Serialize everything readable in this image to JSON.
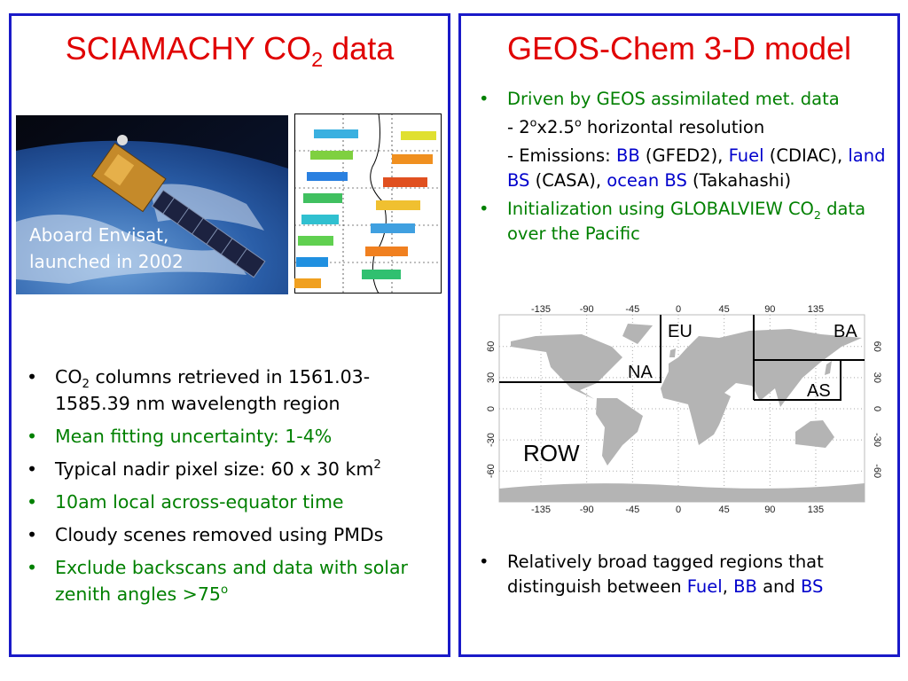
{
  "left": {
    "title": {
      "runs": [
        {
          "text": "SCIAMACHY CO"
        },
        {
          "text": "2",
          "script": "sub"
        },
        {
          "text": " data"
        }
      ]
    },
    "photo_caption": [
      "Aboard Envisat,",
      "launched in 2002"
    ],
    "bullets": [
      {
        "color": "#000000",
        "runs": [
          {
            "text": "CO"
          },
          {
            "text": "2",
            "script": "sub"
          },
          {
            "text": " columns retrieved in 1561.03-1585.39 nm wavelength region"
          }
        ]
      },
      {
        "color": "#008000",
        "runs": [
          {
            "text": "Mean fitting uncertainty: 1-4%"
          }
        ]
      },
      {
        "color": "#000000",
        "runs": [
          {
            "text": "Typical nadir pixel size: 60 x 30 km"
          },
          {
            "text": "2",
            "script": "sup"
          }
        ]
      },
      {
        "color": "#008000",
        "runs": [
          {
            "text": "10am local across-equator time"
          }
        ]
      },
      {
        "color": "#000000",
        "runs": [
          {
            "text": "Cloudy scenes removed using PMDs"
          }
        ]
      },
      {
        "color": "#008000",
        "runs": [
          {
            "text": "Exclude backscans and data with solar zenith angles >75"
          },
          {
            "text": "o",
            "script": "sup"
          }
        ]
      }
    ]
  },
  "right": {
    "title": {
      "runs": [
        {
          "text": "GEOS-Chem 3-D model"
        }
      ]
    },
    "bullets": [
      {
        "color": "#008000",
        "runs": [
          {
            "text": "Driven by GEOS assimilated met. data"
          }
        ],
        "sublines": [
          {
            "color": "#000000",
            "runs": [
              {
                "text": "- 2"
              },
              {
                "text": "o",
                "script": "sup"
              },
              {
                "text": "x2.5"
              },
              {
                "text": "o",
                "script": "sup"
              },
              {
                "text": " horizontal resolution"
              }
            ]
          },
          {
            "color": "#000000",
            "runs": [
              {
                "text": "- Emissions: "
              },
              {
                "text": "BB",
                "color": "#0000cc"
              },
              {
                "text": " (GFED2), "
              },
              {
                "text": "Fuel",
                "color": "#0000cc"
              },
              {
                "text": " (CDIAC), "
              },
              {
                "text": "land BS",
                "color": "#0000cc"
              },
              {
                "text": " (CASA), "
              },
              {
                "text": "ocean BS",
                "color": "#0000cc"
              },
              {
                "text": " (Takahashi)"
              }
            ]
          }
        ]
      },
      {
        "color": "#008000",
        "runs": [
          {
            "text": "Initialization using GLOBALVIEW CO"
          },
          {
            "text": "2",
            "script": "sub"
          },
          {
            "text": " data over the Pacific"
          }
        ]
      }
    ],
    "map": {
      "lon_ticks": [
        -135,
        -90,
        -45,
        0,
        45,
        90,
        135
      ],
      "lat_ticks": [
        60,
        30,
        0,
        -30,
        -60
      ],
      "regions": [
        "EU",
        "BA",
        "NA",
        "AS",
        "ROW"
      ]
    },
    "bottom_bullets": [
      {
        "color": "#000000",
        "runs": [
          {
            "text": "Relatively broad tagged regions that distinguish between "
          },
          {
            "text": "Fuel",
            "color": "#0000cc"
          },
          {
            "text": ", "
          },
          {
            "text": "BB",
            "color": "#0000cc"
          },
          {
            "text": " and "
          },
          {
            "text": "BS",
            "color": "#0000cc"
          }
        ]
      }
    ]
  }
}
